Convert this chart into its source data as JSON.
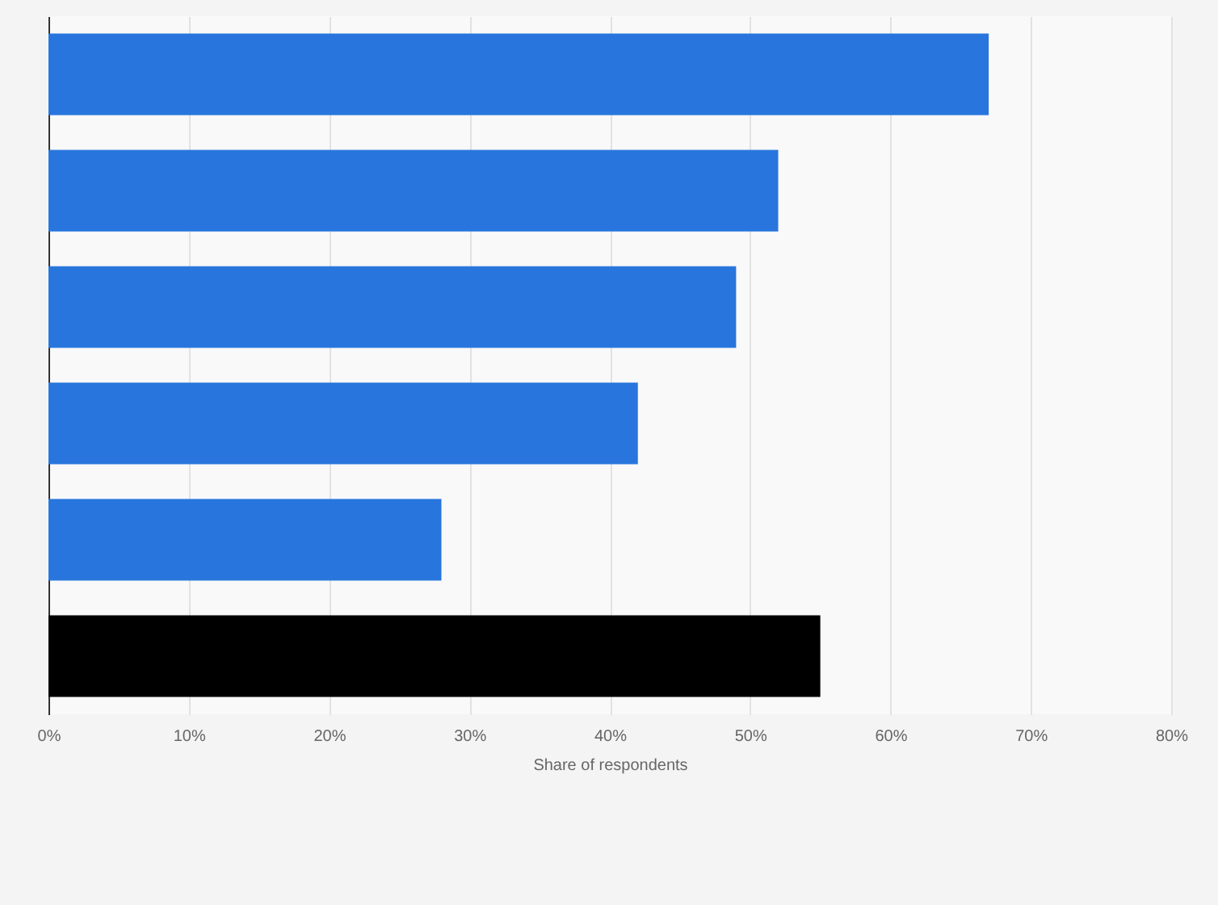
{
  "chart_data": {
    "type": "bar",
    "orientation": "horizontal",
    "xlabel": "Share of respondents",
    "categories": [
      null,
      null,
      null,
      null,
      null,
      null
    ],
    "values": [
      67,
      52,
      49,
      42,
      28,
      55
    ],
    "colors": [
      "#2876dd",
      "#2876dd",
      "#2876dd",
      "#2876dd",
      "#2876dd",
      "#000000"
    ],
    "xlim": [
      0,
      80
    ],
    "xticks": [
      {
        "value": 0,
        "label": "0%"
      },
      {
        "value": 10,
        "label": "10%"
      },
      {
        "value": 20,
        "label": "20%"
      },
      {
        "value": 30,
        "label": "30%"
      },
      {
        "value": 40,
        "label": "40%"
      },
      {
        "value": 50,
        "label": "50%"
      },
      {
        "value": 60,
        "label": "60%"
      },
      {
        "value": 70,
        "label": "70%"
      },
      {
        "value": 80,
        "label": "80%"
      }
    ],
    "grid": "x",
    "tick_labels": "x"
  }
}
